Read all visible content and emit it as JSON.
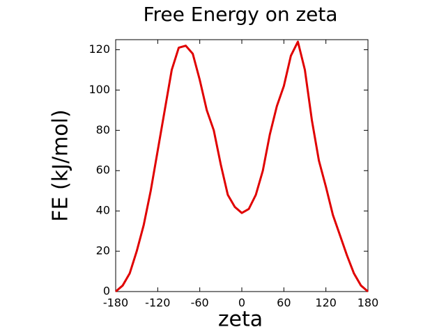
{
  "chart_data": {
    "type": "line",
    "title": "Free Energy on zeta",
    "x_label": "zeta",
    "y_label": "FE (kJ/mol)",
    "x": [
      -180,
      -170,
      -160,
      -150,
      -140,
      -130,
      -120,
      -110,
      -100,
      -90,
      -80,
      -70,
      -60,
      -50,
      -40,
      -30,
      -20,
      -10,
      0,
      10,
      20,
      30,
      40,
      50,
      60,
      70,
      80,
      90,
      100,
      110,
      120,
      130,
      140,
      150,
      160,
      170,
      180
    ],
    "series": [
      {
        "name": "FE",
        "color": "#e00000",
        "values": [
          0,
          3,
          9,
          20,
          33,
          50,
          70,
          90,
          110,
          121,
          122,
          118,
          105,
          90,
          80,
          63,
          48,
          42,
          39,
          41,
          48,
          60,
          78,
          92,
          102,
          117,
          124,
          110,
          85,
          65,
          52,
          38,
          28,
          18,
          9,
          3,
          0
        ]
      }
    ],
    "xlim": [
      -180,
      180
    ],
    "xticks": [
      -180,
      -120,
      -60,
      0,
      60,
      120,
      180
    ],
    "ylim": [
      0,
      125
    ],
    "yticks": [
      0,
      20,
      40,
      60,
      80,
      100,
      120
    ],
    "grid": false
  }
}
